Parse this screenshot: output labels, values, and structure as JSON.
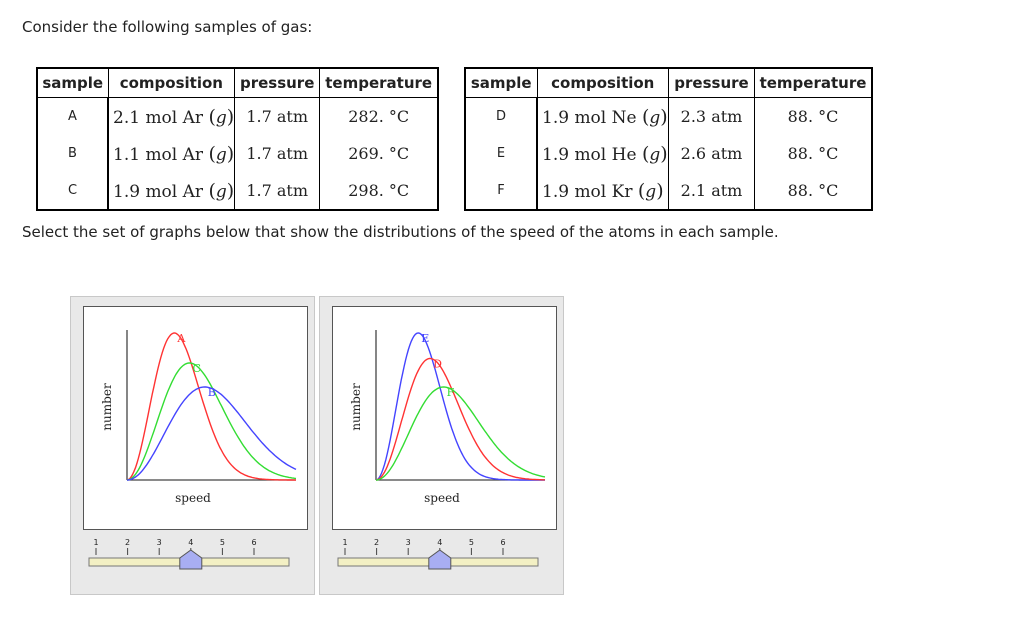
{
  "question": {
    "intro": "Consider the following samples of gas:",
    "instruction": "Select the set of graphs below that show the distributions of the speed of the atoms in each sample."
  },
  "tables": [
    {
      "headers": [
        "sample",
        "composition",
        "pressure",
        "temperature"
      ],
      "rows": [
        {
          "sample": "A",
          "mol": "2.1 mol Ar",
          "pressure": "1.7 atm",
          "temperature": "282. °C"
        },
        {
          "sample": "B",
          "mol": "1.1 mol Ar",
          "pressure": "1.7 atm",
          "temperature": "269. °C"
        },
        {
          "sample": "C",
          "mol": "1.9 mol Ar",
          "pressure": "1.7 atm",
          "temperature": "298. °C"
        }
      ]
    },
    {
      "headers": [
        "sample",
        "composition",
        "pressure",
        "temperature"
      ],
      "rows": [
        {
          "sample": "D",
          "mol": "1.9 mol Ne",
          "pressure": "2.3 atm",
          "temperature": "88. °C"
        },
        {
          "sample": "E",
          "mol": "1.9 mol He",
          "pressure": "2.6 atm",
          "temperature": "88. °C"
        },
        {
          "sample": "F",
          "mol": "1.9 mol Kr",
          "pressure": "2.1 atm",
          "temperature": "88. °C"
        }
      ]
    }
  ],
  "phase": "g",
  "graphs": [
    {
      "xlabel": "speed",
      "ylabel": "number",
      "curves": [
        {
          "label": "A",
          "color": "#ff3333",
          "peak": 0.28,
          "height": 0.98
        },
        {
          "label": "C",
          "color": "#33dd33",
          "peak": 0.37,
          "height": 0.78
        },
        {
          "label": "B",
          "color": "#4444ff",
          "peak": 0.46,
          "height": 0.62
        }
      ],
      "slider": {
        "ticks": [
          "1",
          "2",
          "3",
          "4",
          "5",
          "6"
        ],
        "value": 4
      }
    },
    {
      "xlabel": "speed",
      "ylabel": "number",
      "curves": [
        {
          "label": "E",
          "color": "#4444ff",
          "peak": 0.25,
          "height": 0.98
        },
        {
          "label": "D",
          "color": "#ff3333",
          "peak": 0.32,
          "height": 0.81
        },
        {
          "label": "F",
          "color": "#33dd33",
          "peak": 0.4,
          "height": 0.62
        }
      ],
      "slider": {
        "ticks": [
          "1",
          "2",
          "3",
          "4",
          "5",
          "6"
        ],
        "value": 4
      }
    }
  ]
}
